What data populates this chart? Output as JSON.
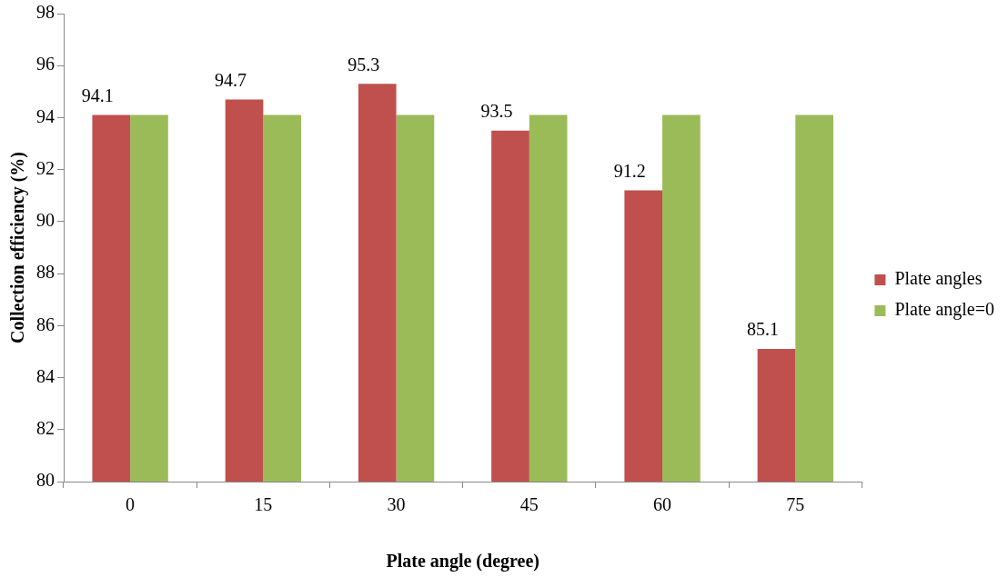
{
  "chart_data": {
    "type": "bar",
    "xlabel": "Plate angle (degree)",
    "ylabel": "Collection efficiency (%)",
    "categories": [
      "0",
      "15",
      "30",
      "45",
      "60",
      "75"
    ],
    "series": [
      {
        "name": "Plate angles",
        "color": "#c0504d",
        "values": [
          94.1,
          94.7,
          95.3,
          93.5,
          91.2,
          85.1
        ],
        "value_labels": [
          "94.1",
          "94.7",
          "95.3",
          "93.5",
          "91.2",
          "85.1"
        ]
      },
      {
        "name": "Plate angle=0",
        "color": "#9bbb59",
        "values": [
          94.1,
          94.1,
          94.1,
          94.1,
          94.1,
          94.1
        ]
      }
    ],
    "ylim": [
      80,
      98
    ],
    "yticks": [
      80,
      82,
      84,
      86,
      88,
      90,
      92,
      94,
      96,
      98
    ],
    "grid": false,
    "legend": "right"
  }
}
